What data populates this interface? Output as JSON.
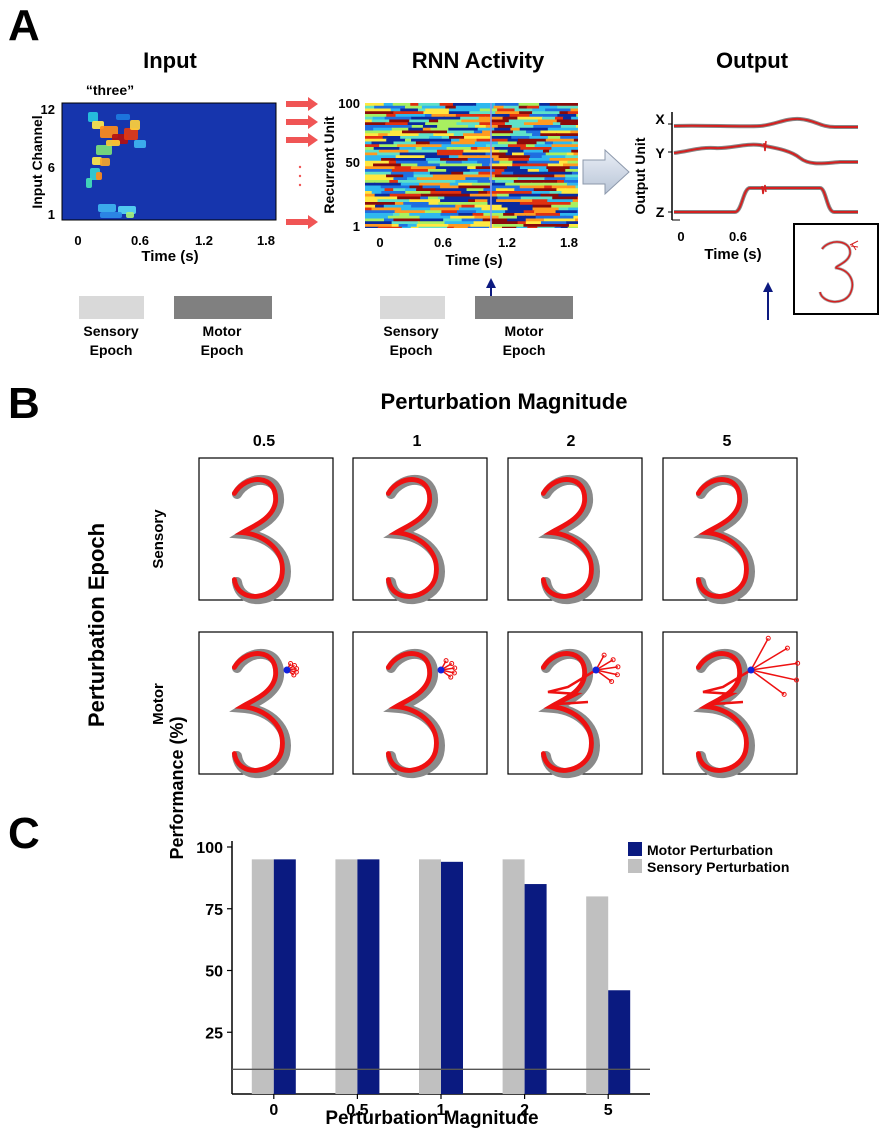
{
  "panel_labels": {
    "a": "A",
    "b": "B",
    "c": "C"
  },
  "panel_a": {
    "input": {
      "title": "Input",
      "stimulus_label": "“three”",
      "ylabel": "Input Channel",
      "xlabel": "Time (s)",
      "yticks": [
        "12",
        "6",
        "1"
      ],
      "xticks": [
        "0",
        "0.6",
        "1.2",
        "1.8"
      ]
    },
    "rnn": {
      "title": "RNN Activity",
      "ylabel": "Recurrent Unit",
      "xlabel": "Time (s)",
      "yticks": [
        "100",
        "50",
        "1"
      ],
      "xticks": [
        "0",
        "0.6",
        "1.2",
        "1.8"
      ]
    },
    "output": {
      "title": "Output",
      "ylabel": "Output Unit",
      "xlabel": "Time (s)",
      "channels": [
        "X",
        "Y",
        "Z"
      ],
      "xticks": [
        "0",
        "0.6"
      ]
    },
    "epochs": {
      "sensory_line1": "Sensory",
      "sensory_line2": "Epoch",
      "motor_line1": "Motor",
      "motor_line2": "Epoch"
    },
    "colors": {
      "trace": "#cc2222",
      "arrow": "#f05555",
      "perturb_arrow": "#0d1a80",
      "sensory_bar": "#d9d9d9",
      "motor_bar": "#808080"
    }
  },
  "panel_b": {
    "title": "Perturbation Magnitude",
    "row_axis_label": "Perturbation Epoch",
    "columns": [
      "0.5",
      "1",
      "2",
      "5"
    ],
    "rows": [
      "Sensory",
      "Motor"
    ],
    "colors": {
      "target": "#888888",
      "output": "#ee1111",
      "perturb_point": "#1122dd"
    }
  },
  "chart_data": {
    "type": "bar",
    "categories": [
      "0",
      "0.5",
      "1",
      "2",
      "5"
    ],
    "series": [
      {
        "name": "Sensory Perturbation",
        "values": [
          95,
          95,
          95,
          95,
          80
        ],
        "color": "#c0c0c0"
      },
      {
        "name": "Motor Perturbation",
        "values": [
          95,
          95,
          94,
          85,
          42
        ],
        "color": "#0a1a80"
      }
    ],
    "xlabel": "Perturbation  Magnitude",
    "ylabel": "Performance  (%)",
    "yticks": [
      25,
      50,
      75,
      100
    ],
    "ylim": [
      0,
      100
    ],
    "chance_line": 10,
    "legend_position": "top-right"
  }
}
